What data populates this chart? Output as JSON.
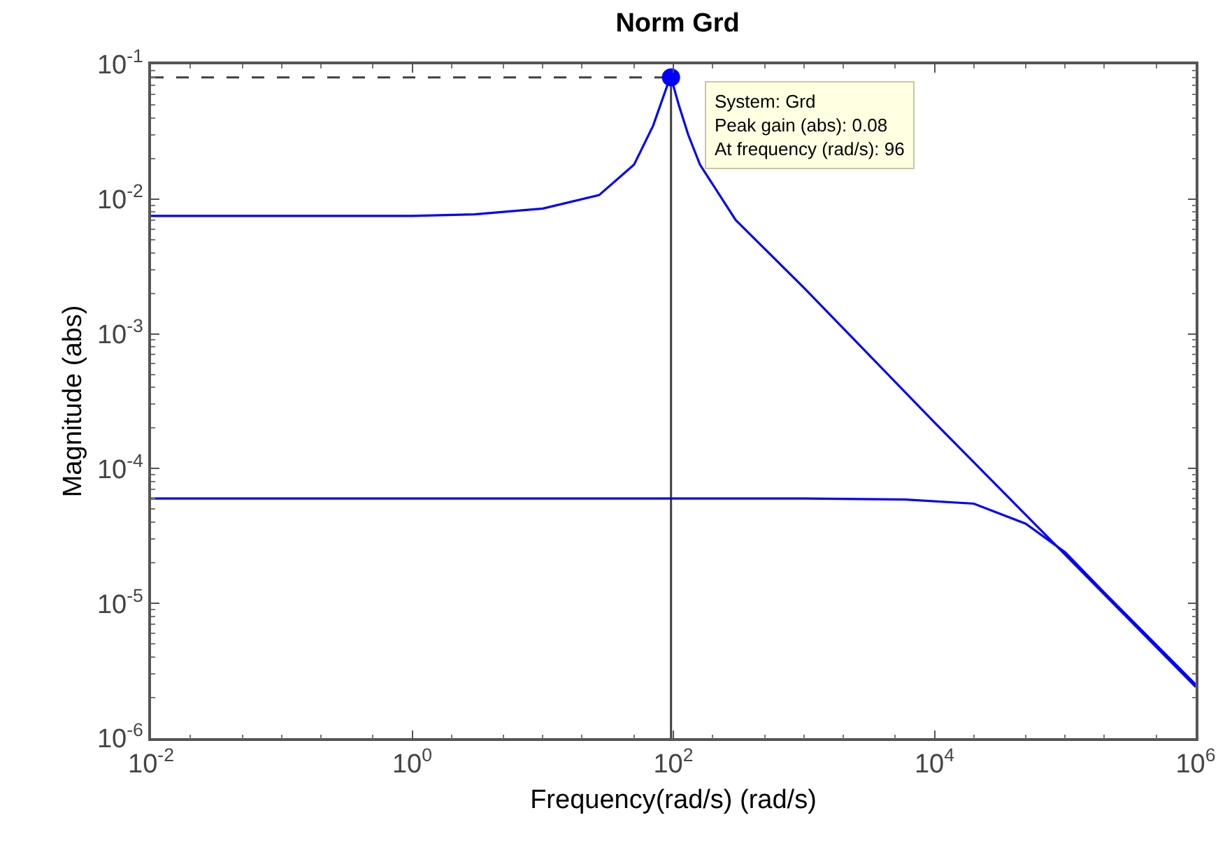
{
  "chart_data": {
    "type": "line",
    "title": "Norm Grd",
    "xlabel": "Frequency(rad/s) (rad/s)",
    "ylabel": "Magnitude (abs)",
    "log": "xy",
    "xlim": [
      0.01,
      1000000
    ],
    "ylim": [
      1e-06,
      0.1
    ],
    "xticks": [
      {
        "value": 0.01,
        "label": "10$^{-2}$"
      },
      {
        "value": 1,
        "label": "10$^{0}$"
      },
      {
        "value": 100,
        "label": "10$^{2}$"
      },
      {
        "value": 10000,
        "label": "10$^{4}$"
      },
      {
        "value": 1000000,
        "label": "10$^{6}$"
      }
    ],
    "yticks": [
      {
        "value": 1e-06,
        "label": "10$^{-6}$"
      },
      {
        "value": 1e-05,
        "label": "10$^{-5}$"
      },
      {
        "value": 0.0001,
        "label": "10$^{-4}$"
      },
      {
        "value": 0.001,
        "label": "10$^{-3}$"
      },
      {
        "value": 0.01,
        "label": "10$^{-2}$"
      },
      {
        "value": 0.1,
        "label": "10$^{-1}$"
      }
    ],
    "grid": false,
    "series": [
      {
        "color": "#0000ff",
        "x": [
          0.01,
          0.1,
          1,
          3,
          10,
          27,
          50,
          70,
          90,
          96,
          110,
          130,
          160,
          300,
          1000,
          10000,
          100000,
          1000000
        ],
        "values": [
          0.0075,
          0.0075,
          0.0075,
          0.0077,
          0.0085,
          0.0107,
          0.018,
          0.035,
          0.07,
          0.08,
          0.05,
          0.03,
          0.018,
          0.007,
          0.0022,
          0.00022,
          2.3e-05,
          2.4e-06
        ]
      },
      {
        "color": "#0000ff",
        "x": [
          0.01,
          1,
          100,
          1000,
          6000,
          20000,
          50000,
          100000,
          200000,
          1000000
        ],
        "values": [
          6e-05,
          6e-05,
          6e-05,
          6e-05,
          5.9e-05,
          5.5e-05,
          3.9e-05,
          2.4e-05,
          1.2e-05,
          2.5e-06
        ]
      },
      {
        "type": "scatter",
        "marker": "circle",
        "color": "#0000ff",
        "x": [
          96
        ],
        "values": [
          0.08
        ]
      }
    ],
    "ref_lines": [
      {
        "axis": "x",
        "value": 96,
        "color": "#404040",
        "line_style": "solid"
      },
      {
        "axis": "y",
        "value": 0.08,
        "color": "#404040",
        "line_style": "dashed"
      }
    ],
    "annotations": [
      "System: Grd\nPeak gain (abs): 0.08\nAt frequency (rad/s): 96"
    ]
  }
}
